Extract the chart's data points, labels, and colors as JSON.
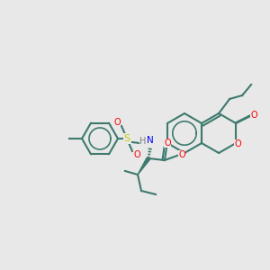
{
  "bg_color": "#e8e8e8",
  "bond_color": "#3d7a6e",
  "bond_width": 1.5,
  "atom_colors": {
    "O": "#ff0000",
    "N": "#0000ff",
    "S": "#cccc00",
    "H": "#808080",
    "C": "#3d7a6e"
  }
}
